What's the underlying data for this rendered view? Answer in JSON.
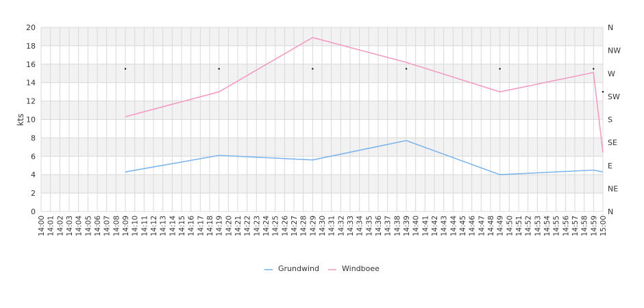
{
  "chart_data": {
    "type": "line",
    "ylabel": "kts",
    "ylim": [
      0,
      20
    ],
    "y_ticks": [
      "0",
      "2",
      "4",
      "6",
      "8",
      "10",
      "12",
      "14",
      "16",
      "18",
      "20"
    ],
    "x_ticks": [
      "14:00",
      "14:01",
      "14:02",
      "14:03",
      "14:04",
      "14:05",
      "14:06",
      "14:07",
      "14:08",
      "14:09",
      "14:10",
      "14:11",
      "14:12",
      "14:13",
      "14:14",
      "14:15",
      "14:16",
      "14:17",
      "14:18",
      "14:19",
      "14:20",
      "14:21",
      "14:22",
      "14:23",
      "14:24",
      "14:25",
      "14:26",
      "14:27",
      "14:28",
      "14:29",
      "14:30",
      "14:31",
      "14:32",
      "14:33",
      "14:34",
      "14:35",
      "14:36",
      "14:37",
      "14:38",
      "14:39",
      "14:40",
      "14:41",
      "14:42",
      "14:43",
      "14:44",
      "14:45",
      "14:46",
      "14:47",
      "14:48",
      "14:49",
      "14:50",
      "14:51",
      "14:52",
      "14:53",
      "14:54",
      "14:55",
      "14:56",
      "14:57",
      "14:58",
      "14:59",
      "15:00"
    ],
    "direction_ticks": [
      "N",
      "NE",
      "E",
      "SE",
      "S",
      "SW",
      "W",
      "NW",
      "N"
    ],
    "grid": true,
    "legend": "bottom-center",
    "series": [
      {
        "name": "Grundwind",
        "color": "#7cb5ec",
        "points": [
          [
            "14:09",
            4.3
          ],
          [
            "14:19",
            6.1
          ],
          [
            "14:29",
            5.6
          ],
          [
            "14:39",
            7.7
          ],
          [
            "14:49",
            4.0
          ],
          [
            "14:59",
            4.5
          ],
          [
            "15:00",
            4.3
          ]
        ]
      },
      {
        "name": "Windboee",
        "color": "#f39bc2",
        "points": [
          [
            "14:09",
            10.3
          ],
          [
            "14:19",
            13.0
          ],
          [
            "14:29",
            18.9
          ],
          [
            "14:39",
            16.2
          ],
          [
            "14:49",
            13.0
          ],
          [
            "14:59",
            15.1
          ],
          [
            "15:00",
            6.4
          ]
        ]
      }
    ],
    "direction_markers": [
      [
        "14:09",
        "W"
      ],
      [
        "14:19",
        "W"
      ],
      [
        "14:29",
        "W"
      ],
      [
        "14:39",
        "W"
      ],
      [
        "14:49",
        "W"
      ],
      [
        "14:59",
        "W"
      ],
      [
        "15:00",
        "SW"
      ]
    ]
  }
}
